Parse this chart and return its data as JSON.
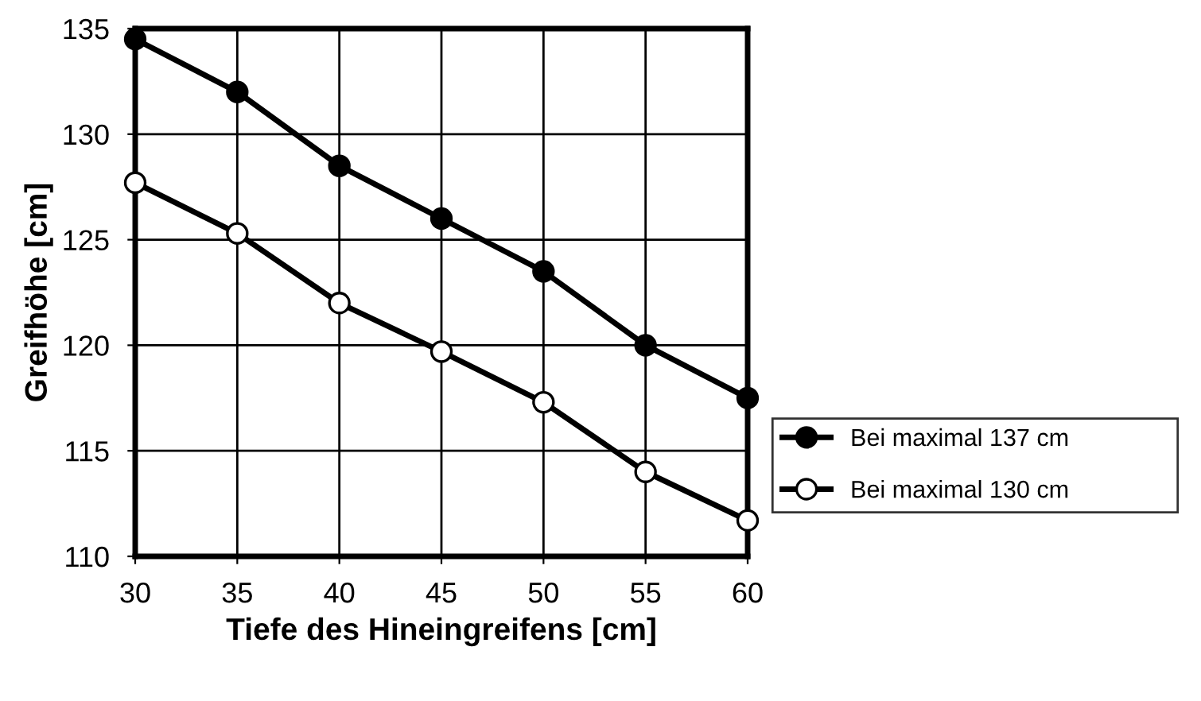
{
  "chart_data": {
    "type": "line",
    "xlabel": "Tiefe des Hineingreifens [cm]",
    "ylabel": "Greifhöhe [cm]",
    "x": [
      30,
      35,
      40,
      45,
      50,
      55,
      60
    ],
    "series": [
      {
        "name": "Bei maximal 137 cm",
        "color": "#000000",
        "values": [
          134.5,
          132,
          128.5,
          126,
          123.5,
          120,
          117.5
        ]
      },
      {
        "name": "Bei maximal 130 cm",
        "color": "#000000",
        "values": [
          127.7,
          125.3,
          122,
          119.7,
          117.3,
          114,
          111.7
        ]
      }
    ],
    "xlim": [
      30,
      60
    ],
    "xticks": [
      30,
      35,
      40,
      45,
      50,
      55,
      60
    ],
    "ylim": [
      110,
      135
    ],
    "yticks": [
      110,
      115,
      120,
      125,
      130,
      135
    ],
    "grid": true,
    "legend": "right",
    "marker": "circle",
    "line_style": "solid"
  }
}
